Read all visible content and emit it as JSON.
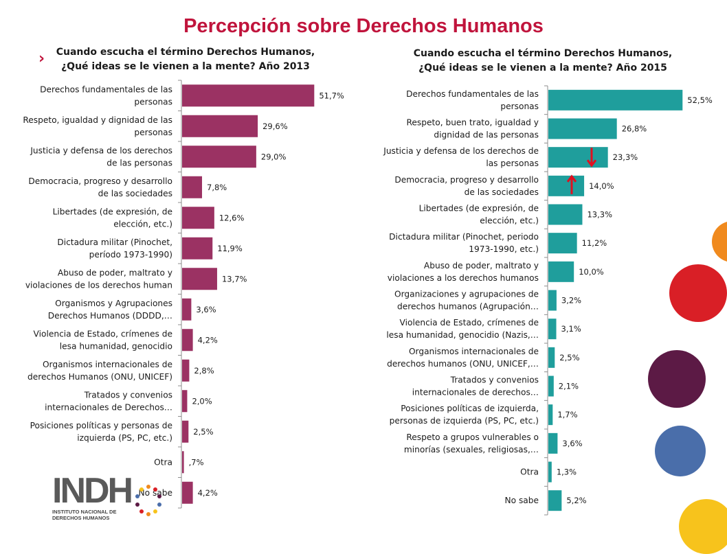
{
  "title": "Percepción sobre Derechos Humanos",
  "colors": {
    "chart1_bar": "#9b3263",
    "chart2_bar": "#1f9e9c",
    "title": "#c0143c",
    "arrow": "#e01020"
  },
  "logo": {
    "text": "INDH",
    "subtitle_line1": "INSTITUTO NACIONAL DE",
    "subtitle_line2": "DERECHOS HUMANOS"
  },
  "chart_data": [
    {
      "type": "bar",
      "orientation": "horizontal",
      "title_line1": "Cuando escucha el término Derechos Humanos,",
      "title_line2": "¿Qué ideas se le vienen a la mente? Año 2013",
      "categories": [
        [
          "Derechos fundamentales de las",
          "personas"
        ],
        [
          "Respeto, igualdad y dignidad de las",
          "personas"
        ],
        [
          "Justicia y defensa de los derechos",
          "de las personas"
        ],
        [
          "Democracia, progreso y desarrollo",
          "de las sociedades"
        ],
        [
          "Libertades (de expresión, de",
          "elección, etc.)"
        ],
        [
          "Dictadura militar (Pinochet,",
          "período 1973-1990)"
        ],
        [
          "Abuso de poder, maltrato y",
          "violaciones de los derechos human"
        ],
        [
          "Organismos y Agrupaciones",
          "Derechos Humanos (DDDD,…"
        ],
        [
          "Violencia de Estado, crímenes de",
          "lesa humanidad, genocidio"
        ],
        [
          "Organismos internacionales de",
          "derechos Humanos (ONU, UNICEF)"
        ],
        [
          "Tratados y convenios",
          "internacionales de Derechos…"
        ],
        [
          "Posiciones políticas y personas de",
          "izquierda (PS, PC, etc.)"
        ],
        [
          "Otra"
        ],
        [
          "No sabe"
        ]
      ],
      "values": [
        51.7,
        29.6,
        29.0,
        7.8,
        12.6,
        11.9,
        13.7,
        3.6,
        4.2,
        2.8,
        2.0,
        2.5,
        0.7,
        4.2
      ],
      "value_labels": [
        "51,7%",
        "29,6%",
        "29,0%",
        "7,8%",
        "12,6%",
        "11,9%",
        "13,7%",
        "3,6%",
        "4,2%",
        "2,8%",
        "2,0%",
        "2,5%",
        ",7%",
        "4,2%"
      ]
    },
    {
      "type": "bar",
      "orientation": "horizontal",
      "title_line1": "Cuando escucha el término Derechos Humanos,",
      "title_line2": "¿Qué ideas se le vienen a la mente?  Año 2015",
      "categories": [
        [
          "Derechos fundamentales de las",
          "personas"
        ],
        [
          "Respeto, buen trato, igualdad y",
          "dignidad de las personas"
        ],
        [
          "Justicia y defensa de los derechos de",
          "las personas"
        ],
        [
          "Democracia, progreso y desarrollo",
          "de las sociedades"
        ],
        [
          "Libertades (de expresión, de",
          "elección, etc.)"
        ],
        [
          "Dictadura militar (Pinochet, periodo",
          "1973-1990, etc.)"
        ],
        [
          "Abuso de poder, maltrato y",
          "violaciones a los derechos humanos"
        ],
        [
          "Organizaciones y agrupaciones de",
          "derechos humanos (Agrupación…"
        ],
        [
          "Violencia de Estado, crímenes de",
          "lesa humanidad, genocidio (Nazis,…"
        ],
        [
          "Organismos internacionales de",
          "derechos humanos (ONU, UNICEF,…"
        ],
        [
          "Tratados y convenios",
          "internacionales de derechos…"
        ],
        [
          "Posiciones políticas de izquierda,",
          "personas de izquierda (PS, PC, etc.)"
        ],
        [
          "Respeto a grupos vulnerables o",
          "minorías  (sexuales, religiosas,…"
        ],
        [
          "Otra"
        ],
        [
          "No sabe"
        ]
      ],
      "values": [
        52.5,
        26.8,
        23.3,
        14.0,
        13.3,
        11.2,
        10.0,
        3.2,
        3.1,
        2.5,
        2.1,
        1.7,
        3.6,
        1.3,
        5.2
      ],
      "value_labels": [
        "52,5%",
        "26,8%",
        "23,3%",
        "14,0%",
        "13,3%",
        "11,2%",
        "10,0%",
        "3,2%",
        "3,1%",
        "2,5%",
        "2,1%",
        "1,7%",
        "3,6%",
        "1,3%",
        "5,2%"
      ],
      "annotations": [
        {
          "category_index": 2,
          "arrow": "down"
        },
        {
          "category_index": 3,
          "arrow": "up"
        }
      ]
    }
  ]
}
